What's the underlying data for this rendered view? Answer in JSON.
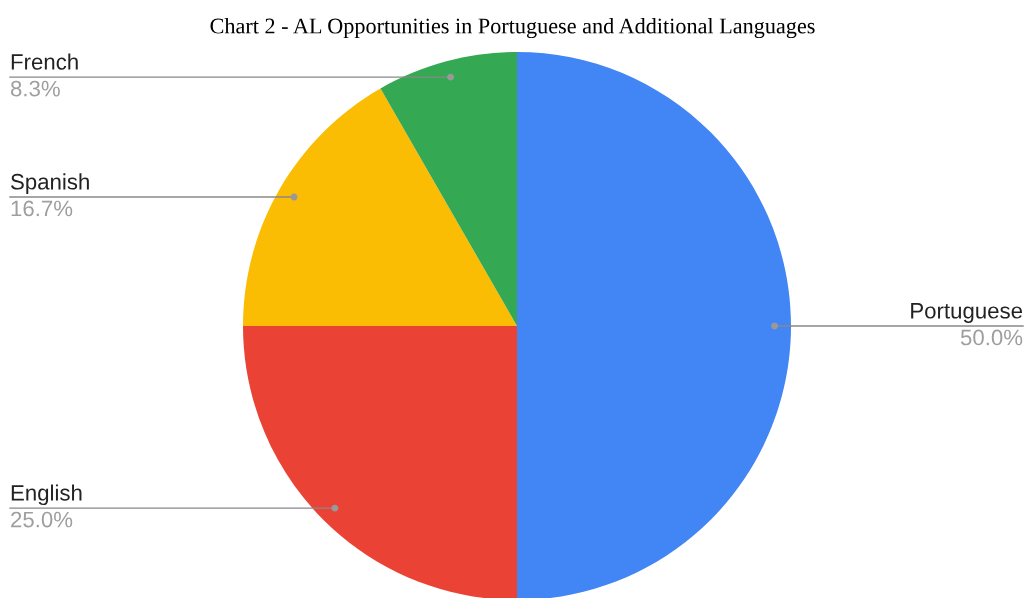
{
  "chart_data": {
    "type": "pie",
    "title": "Chart 2 - AL Opportunities in Portuguese and Additional Languages",
    "categories": [
      "Portuguese",
      "English",
      "Spanish",
      "French"
    ],
    "values": [
      50.0,
      25.0,
      16.7,
      8.3
    ],
    "colors": [
      "#4285f4",
      "#ea4335",
      "#fbbc04",
      "#34a853"
    ],
    "value_labels": [
      "50.0%",
      "25.0%",
      "16.7%",
      "8.3%"
    ],
    "legend": false
  }
}
